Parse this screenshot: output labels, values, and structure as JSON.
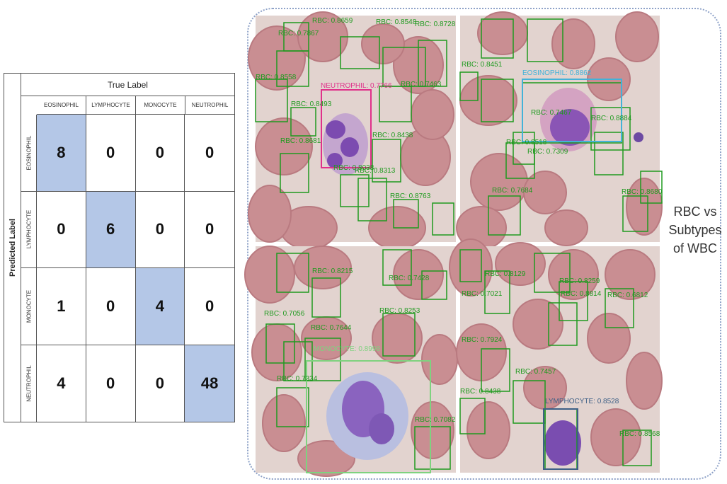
{
  "matrix": {
    "predicted_axis": "Predicted Label",
    "true_axis": "True Label",
    "classes": [
      "EOSINOPHIL",
      "LYMPHOCYTE",
      "MONOCYTE",
      "NEUTROPHIL"
    ],
    "rows": [
      [
        "8",
        "0",
        "0",
        "0"
      ],
      [
        "0",
        "6",
        "0",
        "0"
      ],
      [
        "1",
        "0",
        "4",
        "0"
      ],
      [
        "4",
        "0",
        "0",
        "48"
      ]
    ],
    "diag_color": "#b4c7e7"
  },
  "side_label": [
    "RBC vs",
    "Subtypes",
    "of WBC"
  ],
  "detections": {
    "q1": [
      {
        "label": "RBC: 0.7867",
        "color": "#1f9a1f"
      },
      {
        "label": "RBC: 0.8659",
        "color": "#1f9a1f"
      },
      {
        "label": "RBC: 0.8548",
        "color": "#1f9a1f"
      },
      {
        "label": "RBC: 0.8728",
        "color": "#1f9a1f"
      },
      {
        "label": "RBC: 0.8558",
        "color": "#1f9a1f"
      },
      {
        "label": "NEUTROPHIL: 0.7766",
        "color": "#e0308a"
      },
      {
        "label": "RBC: 0.7463",
        "color": "#1f9a1f"
      },
      {
        "label": "RBC: 0.8493",
        "color": "#1f9a1f"
      },
      {
        "label": "RBC: 0.8438",
        "color": "#1f9a1f"
      },
      {
        "label": "RBC: 0.8681",
        "color": "#1f9a1f"
      },
      {
        "label": "RBC: 0.8038",
        "color": "#1f9a1f"
      },
      {
        "label": "RBC: 0.8313",
        "color": "#1f9a1f"
      },
      {
        "label": "RBC: 0.8763",
        "color": "#1f9a1f"
      }
    ],
    "q2": [
      {
        "label": "RBC: 0.8451",
        "color": "#1f9a1f"
      },
      {
        "label": "EOSINOPHIL: 0.8862",
        "color": "#43b2d8"
      },
      {
        "label": "RBC: 0.7467",
        "color": "#1f9a1f"
      },
      {
        "label": "RBC: 0.8884",
        "color": "#1f9a1f"
      },
      {
        "label": "RBC: 0.8518",
        "color": "#1f9a1f"
      },
      {
        "label": "RBC: 0.7309",
        "color": "#1f9a1f"
      },
      {
        "label": "RBC: 0.7684",
        "color": "#1f9a1f"
      },
      {
        "label": "RBC: 0.8680",
        "color": "#1f9a1f"
      }
    ],
    "q3": [
      {
        "label": "RBC: 0.8215",
        "color": "#1f9a1f"
      },
      {
        "label": "RBC: 0.7428",
        "color": "#1f9a1f"
      },
      {
        "label": "RBC: 0.7056",
        "color": "#1f9a1f"
      },
      {
        "label": "RBC: 0.8253",
        "color": "#1f9a1f"
      },
      {
        "label": "RBC: 0.7644",
        "color": "#1f9a1f"
      },
      {
        "label": "MONOCYTE: 0.8998",
        "color": "#7fd27f"
      },
      {
        "label": "RBC: 0.7334",
        "color": "#1f9a1f"
      },
      {
        "label": "RBC: 0.7082",
        "color": "#1f9a1f"
      }
    ],
    "q4": [
      {
        "label": "RBC: 0.8129",
        "color": "#1f9a1f"
      },
      {
        "label": "RBC: 0.8259",
        "color": "#1f9a1f"
      },
      {
        "label": "RBC: 0.7021",
        "color": "#1f9a1f"
      },
      {
        "label": "RBC: 0.8814",
        "color": "#1f9a1f"
      },
      {
        "label": "RBC: 0.6812",
        "color": "#1f9a1f"
      },
      {
        "label": "RBC: 0.7924",
        "color": "#1f9a1f"
      },
      {
        "label": "RBC: 0.7457",
        "color": "#1f9a1f"
      },
      {
        "label": "RBC: 0.8438",
        "color": "#1f9a1f"
      },
      {
        "label": "LYMPHOCYTE: 0.8528",
        "color": "#3d5f86"
      },
      {
        "label": "RBC: 0.8568",
        "color": "#1f9a1f"
      }
    ]
  }
}
